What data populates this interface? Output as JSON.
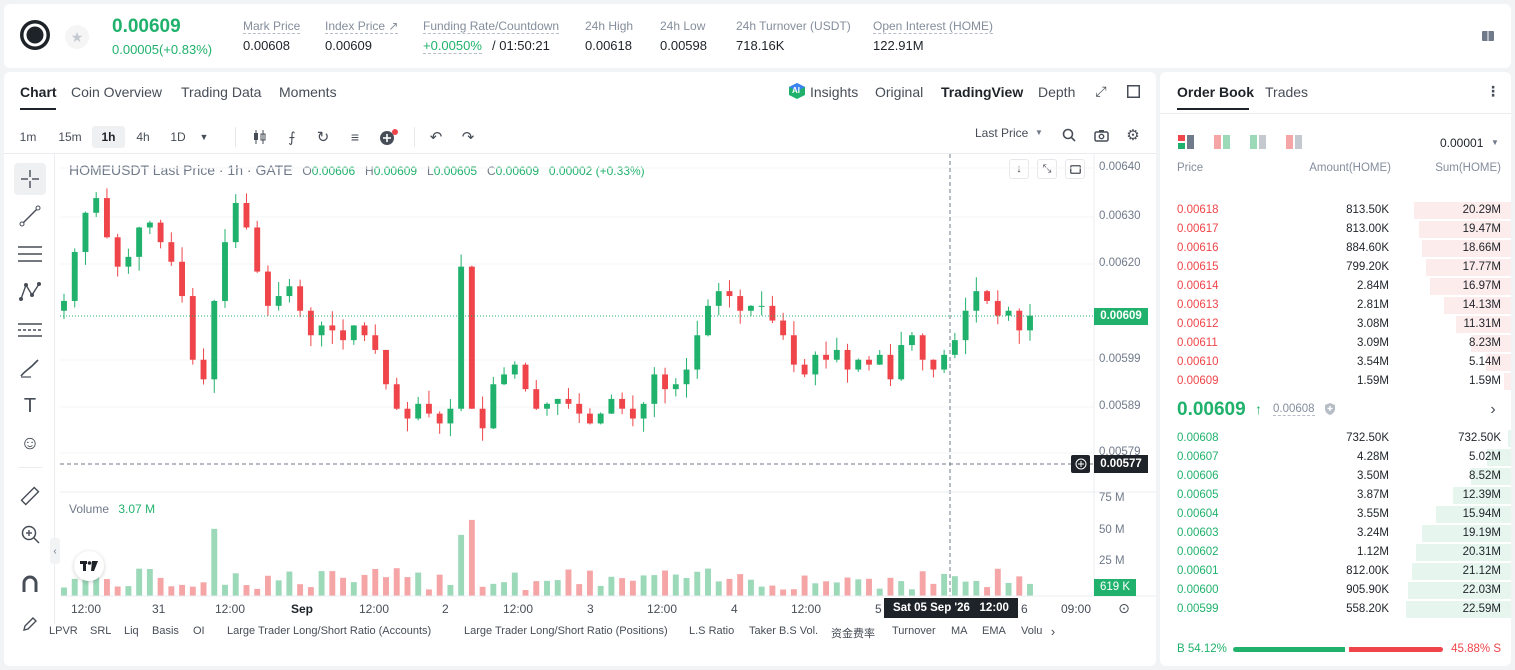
{
  "header": {
    "price": "0.00609",
    "change": "0.00005(+0.83%)",
    "stats": [
      {
        "label": "Mark Price",
        "value": "0.00608"
      },
      {
        "label": "Index Price ↗",
        "value": "0.00609"
      },
      {
        "label": "Funding Rate/Countdown",
        "value": "+0.0050%",
        "value2": "/ 01:50:21"
      },
      {
        "label": "24h High",
        "value": "0.00618"
      },
      {
        "label": "24h Low",
        "value": "0.00598"
      },
      {
        "label": "24h Turnover (USDT)",
        "value": "718.16K"
      },
      {
        "label": "Open Interest (HOME)",
        "value": "122.91M"
      }
    ]
  },
  "chart_tabs": [
    "Chart",
    "Coin Overview",
    "Trading Data",
    "Moments"
  ],
  "view_tabs": {
    "insights": "Insights",
    "original": "Original",
    "tradingview": "TradingView",
    "depth": "Depth"
  },
  "ai_badge": "AI",
  "intervals": [
    "1m",
    "15m",
    "1h",
    "4h",
    "1D"
  ],
  "last_price_select": "Last Price",
  "legend": {
    "symbol": "HOMEUSDT Last Price · 1h · GATE",
    "o": "0.00606",
    "h": "0.00609",
    "l": "0.00605",
    "c": "0.00609",
    "chg": "0.00002 (+0.33%)",
    "o_label": "O",
    "h_label": "H",
    "l_label": "L",
    "c_label": "C"
  },
  "volume_legend": {
    "label": "Volume",
    "value": "3.07 M"
  },
  "price_axis": [
    "0.00640",
    "0.00630",
    "0.00620",
    "0.00599",
    "0.00589",
    "0.00579"
  ],
  "price_tags": {
    "last": "0.00609",
    "cross": "0.00577",
    "volume": "619 K"
  },
  "volume_axis": [
    "75 M",
    "50 M",
    "25 M"
  ],
  "time_axis": [
    "12:00",
    "31",
    "12:00",
    "Sep",
    "12:00",
    "2",
    "12:00",
    "3",
    "12:00",
    "4",
    "12:00",
    "5",
    "6",
    "09:00"
  ],
  "crosshair_time": "Sat 05 Sep '26   12:00",
  "indicators": [
    "LPVR",
    "SRL",
    "Liq",
    "Basis",
    "OI",
    "Large Trader Long/Short Ratio (Accounts)",
    "Large Trader Long/Short Ratio (Positions)",
    "L.S Ratio",
    "Taker B.S Vol.",
    "资金费率",
    "Turnover",
    "MA",
    "EMA",
    "Volu"
  ],
  "order_book": {
    "tabs": [
      "Order Book",
      "Trades"
    ],
    "precision": "0.00001",
    "columns": [
      "Price",
      "Amount(HOME)",
      "Sum(HOME)"
    ],
    "asks": [
      {
        "price": "0.00618",
        "amount": "813.50K",
        "sum": "20.29M",
        "depth": 0.92
      },
      {
        "price": "0.00617",
        "amount": "813.00K",
        "sum": "19.47M",
        "depth": 0.88
      },
      {
        "price": "0.00616",
        "amount": "884.60K",
        "sum": "18.66M",
        "depth": 0.85
      },
      {
        "price": "0.00615",
        "amount": "799.20K",
        "sum": "17.77M",
        "depth": 0.81
      },
      {
        "price": "0.00614",
        "amount": "2.84M",
        "sum": "16.97M",
        "depth": 0.77
      },
      {
        "price": "0.00613",
        "amount": "2.81M",
        "sum": "14.13M",
        "depth": 0.64
      },
      {
        "price": "0.00612",
        "amount": "3.08M",
        "sum": "11.31M",
        "depth": 0.52
      },
      {
        "price": "0.00611",
        "amount": "3.09M",
        "sum": "8.23M",
        "depth": 0.38
      },
      {
        "price": "0.00610",
        "amount": "3.54M",
        "sum": "5.14M",
        "depth": 0.24
      },
      {
        "price": "0.00609",
        "amount": "1.59M",
        "sum": "1.59M",
        "depth": 0.07
      }
    ],
    "mid": {
      "price": "0.00609",
      "arrow": "↑",
      "mark": "0.00608"
    },
    "bids": [
      {
        "price": "0.00608",
        "amount": "732.50K",
        "sum": "732.50K",
        "depth": 0.03
      },
      {
        "price": "0.00607",
        "amount": "4.28M",
        "sum": "5.02M",
        "depth": 0.23
      },
      {
        "price": "0.00606",
        "amount": "3.50M",
        "sum": "8.52M",
        "depth": 0.38
      },
      {
        "price": "0.00605",
        "amount": "3.87M",
        "sum": "12.39M",
        "depth": 0.55
      },
      {
        "price": "0.00604",
        "amount": "3.55M",
        "sum": "15.94M",
        "depth": 0.71
      },
      {
        "price": "0.00603",
        "amount": "3.24M",
        "sum": "19.19M",
        "depth": 0.85
      },
      {
        "price": "0.00602",
        "amount": "1.12M",
        "sum": "20.31M",
        "depth": 0.9
      },
      {
        "price": "0.00601",
        "amount": "812.00K",
        "sum": "21.12M",
        "depth": 0.94
      },
      {
        "price": "0.00600",
        "amount": "905.90K",
        "sum": "22.03M",
        "depth": 0.98
      },
      {
        "price": "0.00599",
        "amount": "558.20K",
        "sum": "22.59M",
        "depth": 1.0
      }
    ],
    "ratio": {
      "buy_label": "B",
      "buy": "54.12%",
      "sell": "45.88%",
      "sell_label": "S",
      "buy_fraction": 0.5412
    }
  },
  "chart_data": {
    "type": "candlestick",
    "symbol": "HOMEUSDT",
    "interval": "1h",
    "ylim": [
      0.00573,
      0.00642
    ],
    "x": [
      "12:00",
      "31",
      "12:00",
      "Sep",
      "12:00",
      "2",
      "12:00",
      "3",
      "12:00",
      "4",
      "12:00",
      "5",
      "12:00",
      "6",
      "09:00"
    ],
    "close_series": [
      0.00612,
      0.00622,
      0.0063,
      0.00633,
      0.00625,
      0.00619,
      0.00621,
      0.00627,
      0.00628,
      0.00624,
      0.0062,
      0.00613,
      0.006,
      0.00596,
      0.00612,
      0.00624,
      0.00632,
      0.00627,
      0.00618,
      0.00611,
      0.00613,
      0.00615,
      0.0061,
      0.00605,
      0.00607,
      0.00606,
      0.00604,
      0.00607,
      0.00605,
      0.00602,
      0.00595,
      0.0059,
      0.00588,
      0.00591,
      0.00589,
      0.00587,
      0.0059,
      0.00619,
      0.0059,
      0.00586,
      0.00595,
      0.00597,
      0.00599,
      0.00594,
      0.0059,
      0.00591,
      0.00592,
      0.00591,
      0.00589,
      0.00587,
      0.00589,
      0.00592,
      0.0059,
      0.00588,
      0.00591,
      0.00597,
      0.00594,
      0.00595,
      0.00598,
      0.00605,
      0.00611,
      0.00614,
      0.00613,
      0.0061,
      0.00611,
      0.00611,
      0.00608,
      0.00605,
      0.00599,
      0.00597,
      0.00601,
      0.006,
      0.00602,
      0.00598,
      0.006,
      0.00599,
      0.00601,
      0.00596,
      0.00603,
      0.00605,
      0.006,
      0.00598,
      0.00601,
      0.00604,
      0.0061,
      0.00614,
      0.00612,
      0.00609,
      0.0061,
      0.00606,
      0.00609
    ],
    "volume_unit": "M"
  }
}
